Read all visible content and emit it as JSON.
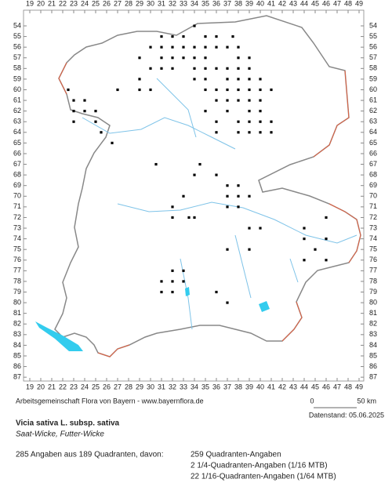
{
  "map": {
    "x_labels": [
      19,
      20,
      21,
      22,
      23,
      24,
      25,
      26,
      27,
      28,
      29,
      30,
      31,
      32,
      33,
      34,
      35,
      36,
      37,
      38,
      39,
      40,
      41,
      42,
      43,
      44,
      45,
      46,
      47,
      48,
      49
    ],
    "y_labels": [
      54,
      55,
      56,
      57,
      58,
      59,
      60,
      61,
      62,
      63,
      64,
      65,
      66,
      67,
      68,
      69,
      70,
      71,
      72,
      73,
      74,
      75,
      76,
      77,
      78,
      79,
      80,
      81,
      82,
      83,
      84,
      85,
      86,
      87
    ],
    "records": [
      [
        34,
        54
      ],
      [
        31,
        55
      ],
      [
        32,
        55
      ],
      [
        33,
        55
      ],
      [
        35,
        55
      ],
      [
        36,
        55
      ],
      [
        37.5,
        55
      ],
      [
        30,
        56
      ],
      [
        31,
        56
      ],
      [
        32,
        56
      ],
      [
        33,
        56
      ],
      [
        34,
        56
      ],
      [
        35,
        56
      ],
      [
        36,
        56
      ],
      [
        37,
        56
      ],
      [
        38,
        56
      ],
      [
        29,
        57
      ],
      [
        31,
        57
      ],
      [
        32,
        57
      ],
      [
        33,
        57
      ],
      [
        34,
        57
      ],
      [
        35,
        57
      ],
      [
        38,
        57
      ],
      [
        39,
        57
      ],
      [
        30,
        58
      ],
      [
        31,
        58
      ],
      [
        32,
        58
      ],
      [
        34,
        58
      ],
      [
        35,
        58
      ],
      [
        36,
        58
      ],
      [
        37,
        58
      ],
      [
        38,
        58
      ],
      [
        39,
        58
      ],
      [
        29,
        59
      ],
      [
        34,
        59
      ],
      [
        35,
        59
      ],
      [
        37,
        59
      ],
      [
        38,
        59
      ],
      [
        39,
        59
      ],
      [
        40,
        59
      ],
      [
        27,
        60
      ],
      [
        29,
        60
      ],
      [
        30,
        60
      ],
      [
        35,
        60
      ],
      [
        36,
        60
      ],
      [
        37,
        60
      ],
      [
        38,
        60
      ],
      [
        39,
        60
      ],
      [
        40,
        60
      ],
      [
        41,
        60
      ],
      [
        22.5,
        60
      ],
      [
        23,
        61
      ],
      [
        24,
        61
      ],
      [
        36,
        61
      ],
      [
        37,
        61
      ],
      [
        38,
        61
      ],
      [
        39,
        61
      ],
      [
        40,
        61
      ],
      [
        23,
        62
      ],
      [
        24,
        62
      ],
      [
        25,
        62
      ],
      [
        35,
        62
      ],
      [
        37,
        62
      ],
      [
        39,
        62
      ],
      [
        40,
        62
      ],
      [
        23,
        63
      ],
      [
        25,
        63
      ],
      [
        36,
        63
      ],
      [
        38,
        63
      ],
      [
        39,
        63
      ],
      [
        40,
        63
      ],
      [
        41,
        63
      ],
      [
        25.5,
        64
      ],
      [
        36,
        64
      ],
      [
        38,
        64
      ],
      [
        39,
        64
      ],
      [
        40,
        64
      ],
      [
        41,
        64
      ],
      [
        26.5,
        65
      ],
      [
        30.5,
        67
      ],
      [
        34.5,
        67
      ],
      [
        34,
        68
      ],
      [
        36,
        68
      ],
      [
        37,
        69
      ],
      [
        38,
        69
      ],
      [
        37,
        70
      ],
      [
        38,
        70
      ],
      [
        39,
        70
      ],
      [
        37,
        71
      ],
      [
        38,
        71
      ],
      [
        33,
        70
      ],
      [
        32,
        71
      ],
      [
        32,
        72
      ],
      [
        33.5,
        72
      ],
      [
        34,
        72
      ],
      [
        39,
        73
      ],
      [
        40,
        73
      ],
      [
        44,
        73
      ],
      [
        44,
        74
      ],
      [
        46,
        74
      ],
      [
        45,
        75
      ],
      [
        44,
        76
      ],
      [
        46,
        76
      ],
      [
        46,
        72
      ],
      [
        37,
        75
      ],
      [
        39,
        75
      ],
      [
        31,
        78
      ],
      [
        32,
        77
      ],
      [
        33,
        77
      ],
      [
        32,
        78
      ],
      [
        33,
        78
      ],
      [
        31,
        79
      ],
      [
        32,
        79
      ],
      [
        36,
        79
      ],
      [
        37,
        80
      ]
    ]
  },
  "footer": {
    "credit": "Arbeitsgemeinschaft Flora von Bayern - www.bayernflora.de",
    "scale_start": "0",
    "scale_end": "50 km",
    "date": "Datenstand: 05.06.2025",
    "species": "Vicia sativa L. subsp. sativa",
    "common_names": "Saat-Wicke, Futter-Wicke",
    "summary": "285 Angaben aus 189 Quadranten, davon:",
    "breakdown": [
      "259 Quadranten-Angaben",
      "2 1/4-Quadranten-Angaben (1/16 MTB)",
      "22 1/16-Quadranten-Angaben (1/64 MTB)"
    ]
  }
}
